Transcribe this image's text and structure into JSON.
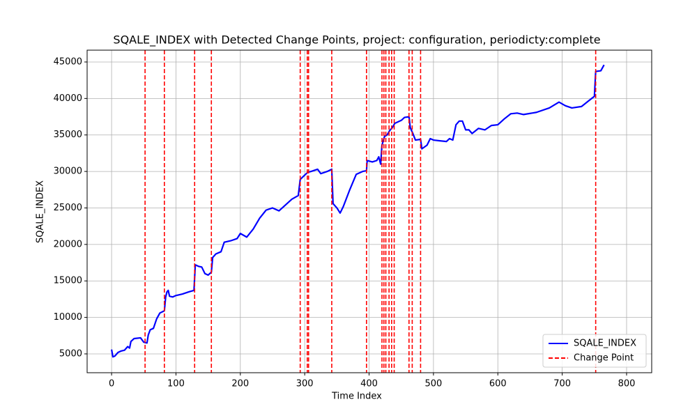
{
  "chart_data": {
    "type": "line",
    "title": "SQALE_INDEX with Detected Change Points, project: configuration, periodicty:complete",
    "x_label": "Time Index",
    "y_label": "SQALE_INDEX",
    "x": [
      0,
      2,
      5,
      10,
      15,
      20,
      25,
      28,
      30,
      35,
      45,
      50,
      55,
      57,
      60,
      65,
      70,
      75,
      82,
      84,
      86,
      88,
      90,
      95,
      100,
      110,
      120,
      128,
      130,
      135,
      140,
      145,
      150,
      155,
      157,
      162,
      170,
      175,
      185,
      195,
      200,
      210,
      220,
      230,
      240,
      250,
      260,
      270,
      280,
      290,
      293,
      300,
      305,
      310,
      320,
      325,
      335,
      342,
      344,
      350,
      355,
      360,
      370,
      380,
      390,
      396,
      397,
      405,
      412,
      415,
      418,
      420,
      424,
      428,
      432,
      436,
      440,
      450,
      455,
      462,
      464,
      468,
      472,
      480,
      482,
      490,
      495,
      500,
      510,
      520,
      525,
      530,
      535,
      540,
      545,
      550,
      555,
      560,
      570,
      580,
      590,
      600,
      610,
      620,
      630,
      640,
      660,
      680,
      695,
      705,
      715,
      730,
      740,
      750,
      752,
      760,
      765
    ],
    "series": [
      {
        "name": "SQALE_INDEX",
        "color": "#0000ff",
        "values": [
          5600,
          4600,
          4700,
          5200,
          5400,
          5500,
          6000,
          5800,
          6700,
          7100,
          7200,
          6600,
          6500,
          7600,
          8300,
          8500,
          9800,
          10600,
          10900,
          12800,
          13500,
          13700,
          12900,
          12800,
          13000,
          13200,
          13500,
          13700,
          17200,
          17000,
          16900,
          16000,
          15800,
          16200,
          18200,
          18700,
          19000,
          20300,
          20500,
          20800,
          21500,
          21000,
          22100,
          23600,
          24700,
          25000,
          24600,
          25400,
          26200,
          26700,
          28900,
          29500,
          29900,
          30000,
          30300,
          29700,
          30000,
          30300,
          25600,
          25000,
          24300,
          25200,
          27500,
          29600,
          30000,
          30100,
          31500,
          31300,
          31500,
          32000,
          31000,
          33600,
          34800,
          35000,
          35600,
          36000,
          36600,
          37000,
          37400,
          37500,
          36000,
          35200,
          34300,
          34400,
          33100,
          33600,
          34500,
          34300,
          34200,
          34100,
          34500,
          34300,
          36400,
          36900,
          36900,
          35700,
          35700,
          35200,
          35900,
          35700,
          36300,
          36400,
          37200,
          37900,
          38000,
          37800,
          38100,
          38700,
          39500,
          39000,
          38700,
          38900,
          39600,
          40300,
          43700,
          43800,
          44600
        ]
      }
    ],
    "change_points": {
      "name": "Change Point",
      "color": "#ff0000",
      "x": [
        52,
        82,
        129,
        155,
        293,
        304,
        306,
        342,
        396,
        420,
        423,
        426,
        431,
        435,
        439,
        462,
        467,
        480,
        752
      ]
    },
    "xlim": [
      -38,
      839
    ],
    "ylim": [
      2420,
      46620
    ],
    "xticks": [
      0,
      100,
      200,
      300,
      400,
      500,
      600,
      700,
      800
    ],
    "yticks": [
      5000,
      10000,
      15000,
      20000,
      25000,
      30000,
      35000,
      40000,
      45000
    ],
    "grid": true,
    "legend": "lower right"
  }
}
